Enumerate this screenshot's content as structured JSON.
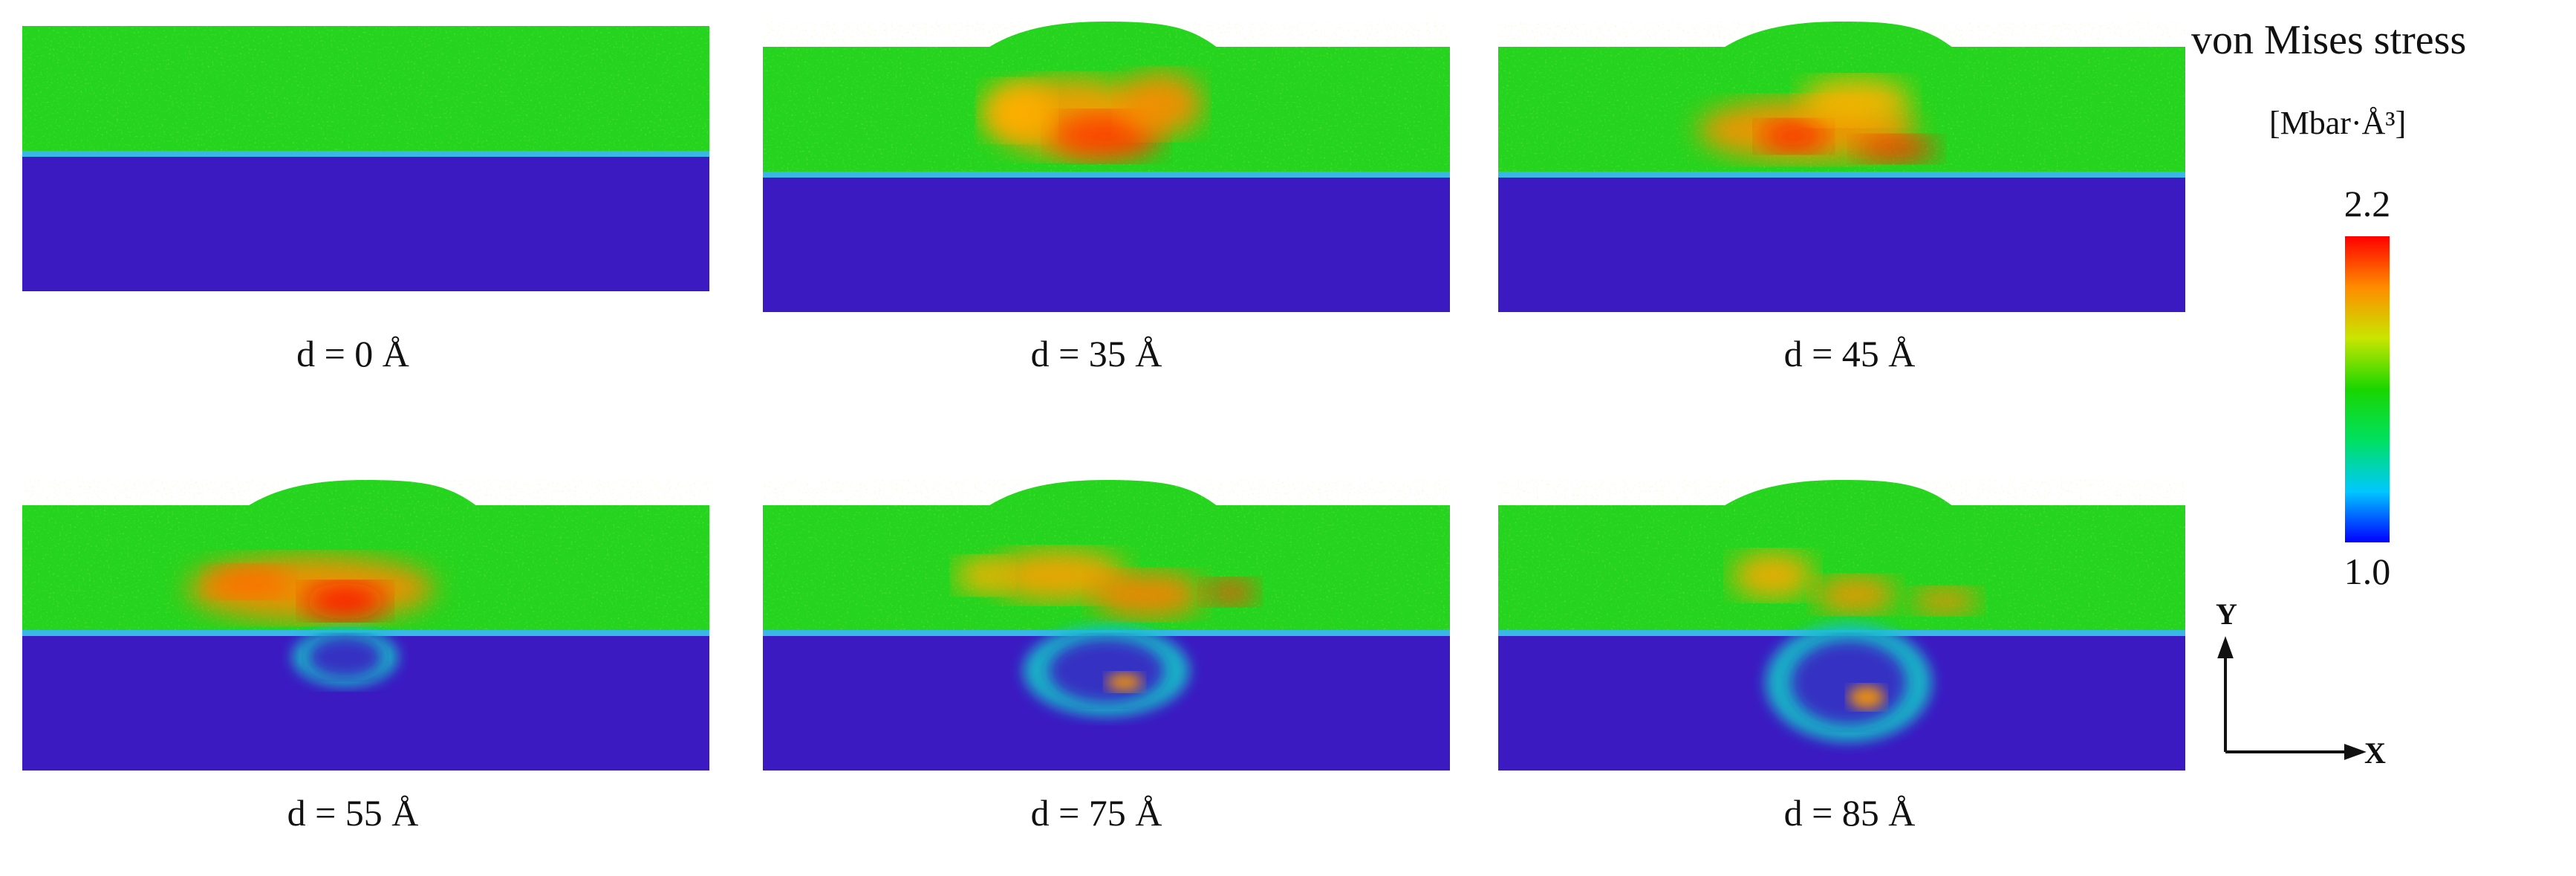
{
  "figure": {
    "panels": [
      {
        "label": "d = 0 Å",
        "pattern": "initial"
      },
      {
        "label": "d = 35 Å",
        "pattern": "hot-top"
      },
      {
        "label": "d = 45 Å",
        "pattern": "hot-mid"
      },
      {
        "label": "d = 55 Å",
        "pattern": "hot-deep"
      },
      {
        "label": "d = 75 Å",
        "pattern": "cavity"
      },
      {
        "label": "d = 85 Å",
        "pattern": "cavity-deep"
      }
    ],
    "legend": {
      "title": "von Mises stress",
      "unit": "[Mbar·Å³]",
      "max_label": "2.2",
      "min_label": "1.0",
      "gradient": [
        "#0000ff",
        "#00c8ff",
        "#00e060",
        "#19d600",
        "#c8e600",
        "#ff8c00",
        "#ff0000"
      ]
    },
    "axes": {
      "y_label": "Y",
      "x_label": "X"
    },
    "colors": {
      "coating": "#24d41e",
      "substrate": "#3b1ac2",
      "interface": "#39b8e6"
    }
  }
}
